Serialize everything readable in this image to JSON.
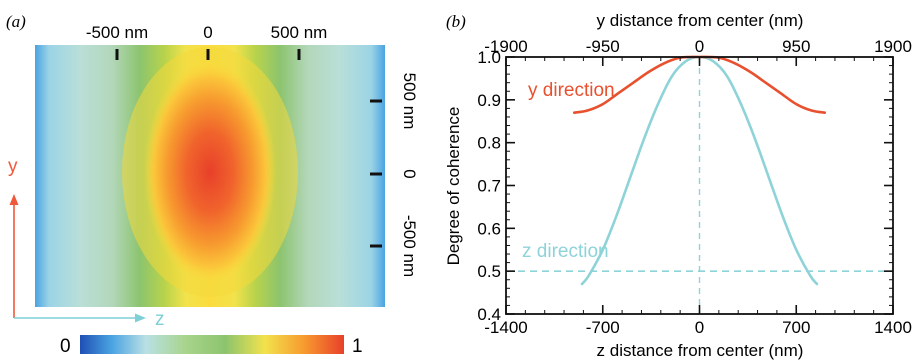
{
  "panel_a": {
    "label": "(a)",
    "top_ticks": [
      "-500 nm",
      "0",
      "500 nm"
    ],
    "right_ticks": [
      "500 nm",
      "0",
      "-500 nm"
    ],
    "y_arrow_label": "y",
    "z_arrow_label": "z",
    "colorbar_min": "0",
    "colorbar_max": "1",
    "arrow_color": "#f0583a",
    "z_arrow_color": "#7ecfd6"
  },
  "chart_data": {
    "type": "line",
    "panel_label": "(b)",
    "xlabel": "z distance from center (nm)",
    "x2label": "y distance from center (nm)",
    "ylabel": "Degree of coherence",
    "xlim": [
      -1400,
      1400
    ],
    "x2lim": [
      -1900,
      1900
    ],
    "ylim": [
      0.4,
      1.0
    ],
    "xticks": [
      "-1400",
      "-700",
      "0",
      "700",
      "1400"
    ],
    "x2ticks": [
      "-1900",
      "-950",
      "0",
      "950",
      "1900"
    ],
    "yticks": [
      "0.4",
      "0.5",
      "0.6",
      "0.7",
      "0.8",
      "0.9",
      "1.0"
    ],
    "ref_hline": 0.5,
    "ref_vline": 0,
    "series": [
      {
        "name": "y direction",
        "axis": "top",
        "color": "#e8502e",
        "x": [
          -1230,
          -1100,
          -950,
          -800,
          -650,
          -500,
          -350,
          -200,
          -100,
          0,
          100,
          200,
          350,
          500,
          650,
          800,
          950,
          1100,
          1230
        ],
        "y": [
          0.87,
          0.875,
          0.89,
          0.915,
          0.94,
          0.965,
          0.985,
          0.998,
          1.0,
          1.0,
          1.0,
          0.998,
          0.985,
          0.965,
          0.94,
          0.915,
          0.89,
          0.875,
          0.87
        ]
      },
      {
        "name": "z direction",
        "axis": "bottom",
        "color": "#8dd3d8",
        "x": [
          -850,
          -800,
          -700,
          -600,
          -500,
          -400,
          -300,
          -200,
          -100,
          0,
          100,
          200,
          300,
          400,
          500,
          600,
          700,
          800,
          850
        ],
        "y": [
          0.47,
          0.49,
          0.55,
          0.63,
          0.72,
          0.81,
          0.89,
          0.955,
          0.99,
          1.0,
          0.99,
          0.955,
          0.89,
          0.81,
          0.72,
          0.63,
          0.55,
          0.49,
          0.47
        ]
      }
    ]
  }
}
